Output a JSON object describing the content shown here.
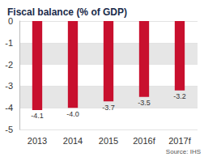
{
  "chart_data": {
    "type": "bar",
    "title": "Fiscal balance (% of GDP)",
    "categories": [
      "2013",
      "2014",
      "2015",
      "2016f",
      "2017f"
    ],
    "values": [
      -4.1,
      -4.0,
      -3.7,
      -3.5,
      -3.2
    ],
    "value_labels": [
      "-4.1",
      "-4.0",
      "-3.7",
      "-3.5",
      "-3.2"
    ],
    "data_labels": true,
    "color": "#c8102e",
    "ylim": [
      -5,
      0
    ],
    "yticks": [
      -5,
      -4,
      -3,
      -2,
      -1,
      0
    ],
    "grid": true,
    "annotation": "Source: IHS"
  }
}
